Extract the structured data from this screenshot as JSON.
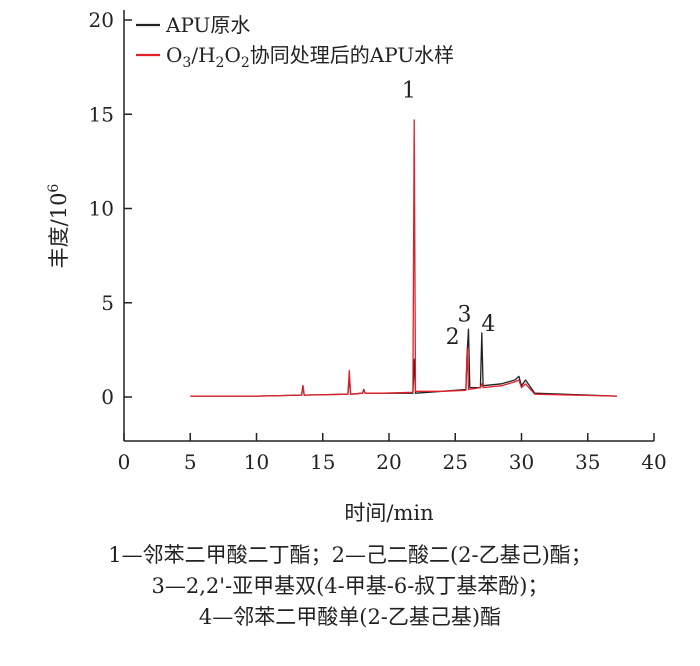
{
  "chart_data": {
    "type": "line",
    "xlabel": "时间/min",
    "ylabel": "丰度/10",
    "ylabel_sup": "6",
    "xlim": [
      0,
      40
    ],
    "ylim": [
      -2.5,
      20
    ],
    "x_ticks": [
      "0",
      "5",
      "10",
      "15",
      "20",
      "25",
      "30",
      "35",
      "40"
    ],
    "y_ticks": [
      "0",
      "5",
      "10",
      "15",
      "20"
    ],
    "legend_position": "top-left",
    "series": [
      {
        "name": "APU原水",
        "color": "#222222",
        "points": [
          [
            5,
            0.05
          ],
          [
            10,
            0.05
          ],
          [
            13.4,
            0.1
          ],
          [
            13.5,
            0.6
          ],
          [
            13.6,
            0.1
          ],
          [
            16.9,
            0.15
          ],
          [
            17.0,
            1.0
          ],
          [
            17.1,
            0.15
          ],
          [
            18.0,
            0.2
          ],
          [
            18.1,
            0.4
          ],
          [
            18.2,
            0.2
          ],
          [
            21.8,
            0.2
          ],
          [
            21.9,
            2.0
          ],
          [
            22.0,
            0.2
          ],
          [
            24,
            0.3
          ],
          [
            25.8,
            0.4
          ],
          [
            25.9,
            2.4
          ],
          [
            26.0,
            3.6
          ],
          [
            26.1,
            0.5
          ],
          [
            26.9,
            0.5
          ],
          [
            27.0,
            3.4
          ],
          [
            27.1,
            0.6
          ],
          [
            28.5,
            0.7
          ],
          [
            29.5,
            0.9
          ],
          [
            29.8,
            1.1
          ],
          [
            30.0,
            0.6
          ],
          [
            30.3,
            0.9
          ],
          [
            31,
            0.2
          ],
          [
            37.2,
            0.05
          ]
        ]
      },
      {
        "name_parts": [
          "O",
          "3",
          "/H",
          "2",
          "O",
          "2",
          "协同处理后的APU水样"
        ],
        "color": "#e0202a",
        "points": [
          [
            5,
            0.05
          ],
          [
            10,
            0.05
          ],
          [
            13.4,
            0.1
          ],
          [
            13.5,
            0.6
          ],
          [
            13.6,
            0.1
          ],
          [
            16.9,
            0.15
          ],
          [
            17.0,
            1.4
          ],
          [
            17.1,
            0.15
          ],
          [
            18.0,
            0.2
          ],
          [
            18.1,
            0.35
          ],
          [
            18.2,
            0.2
          ],
          [
            19.5,
            0.2
          ],
          [
            21.8,
            0.25
          ],
          [
            21.9,
            14.7
          ],
          [
            22.0,
            0.3
          ],
          [
            24,
            0.3
          ],
          [
            25.8,
            0.35
          ],
          [
            25.9,
            2.6
          ],
          [
            26.0,
            0.4
          ],
          [
            26.9,
            0.5
          ],
          [
            27.0,
            0.7
          ],
          [
            27.1,
            0.5
          ],
          [
            28.5,
            0.6
          ],
          [
            29.5,
            0.8
          ],
          [
            29.8,
            0.9
          ],
          [
            30.0,
            0.5
          ],
          [
            30.3,
            0.7
          ],
          [
            31,
            0.15
          ],
          [
            37.2,
            0.05
          ]
        ]
      }
    ],
    "peak_labels": [
      {
        "text": "1",
        "x": 21.5,
        "y": 15.9
      },
      {
        "text": "2",
        "x": 24.8,
        "y": 2.8
      },
      {
        "text": "3",
        "x": 25.7,
        "y": 4.0
      },
      {
        "text": "4",
        "x": 27.5,
        "y": 3.5
      }
    ]
  },
  "caption": [
    "1—邻苯二甲酸二丁酯；2—己二酸二(2-乙基己)酯；",
    "3—2,2'-亚甲基双(4-甲基-6-叔丁基苯酚)；",
    "4—邻苯二甲酸单(2-乙基己基)酯"
  ]
}
